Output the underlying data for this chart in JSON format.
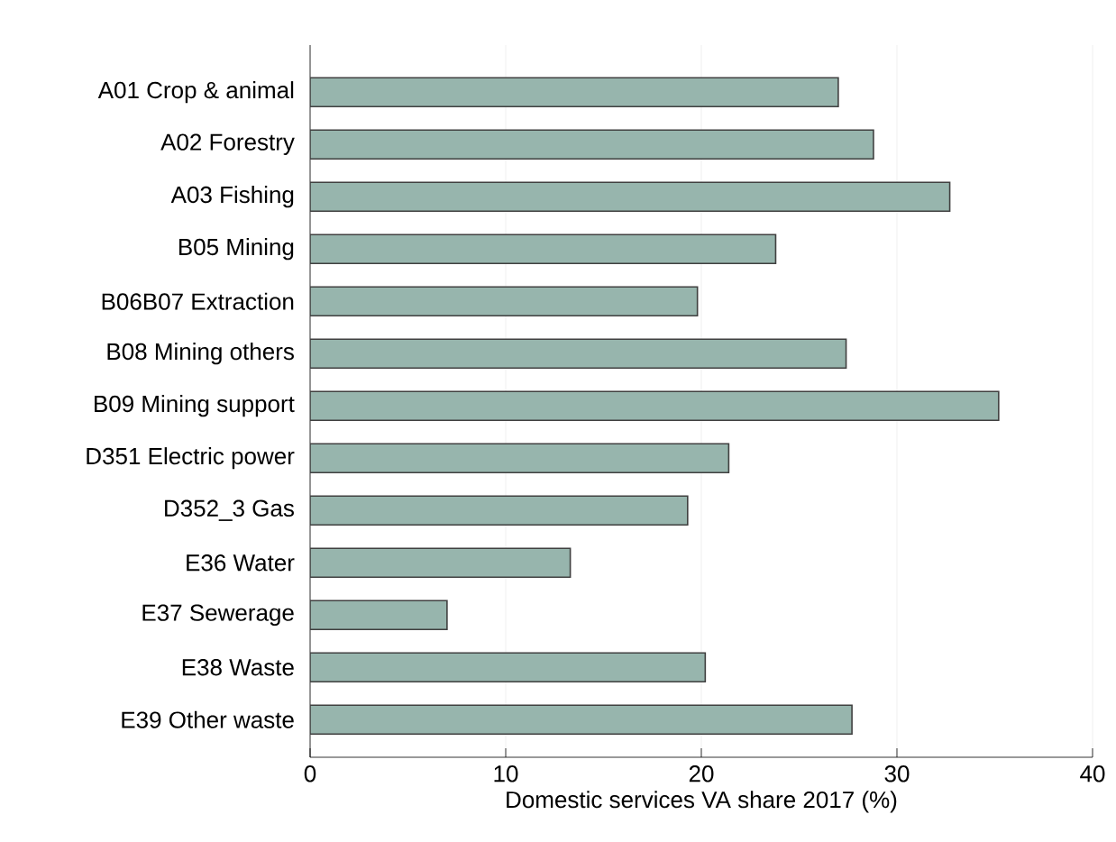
{
  "chart_data": {
    "type": "bar",
    "orientation": "horizontal",
    "xlabel": "Domestic services VA share 2017 (%)",
    "categories": [
      "A01 Crop & animal",
      "A02 Forestry",
      "A03 Fishing",
      "B05 Mining",
      "B06B07 Extraction",
      "B08 Mining others",
      "B09 Mining support",
      "D351 Electric power",
      "D352_3 Gas",
      "E36 Water",
      "E37 Sewerage",
      "E38 Waste",
      "E39 Other waste"
    ],
    "values": [
      27.0,
      28.8,
      32.7,
      23.8,
      19.8,
      27.4,
      35.2,
      21.4,
      19.3,
      13.3,
      7.0,
      20.2,
      27.7
    ],
    "color": "#97b5ad",
    "xlim": [
      0,
      40
    ],
    "xticks": [
      0,
      10,
      20,
      30,
      40
    ],
    "grid": "x"
  }
}
